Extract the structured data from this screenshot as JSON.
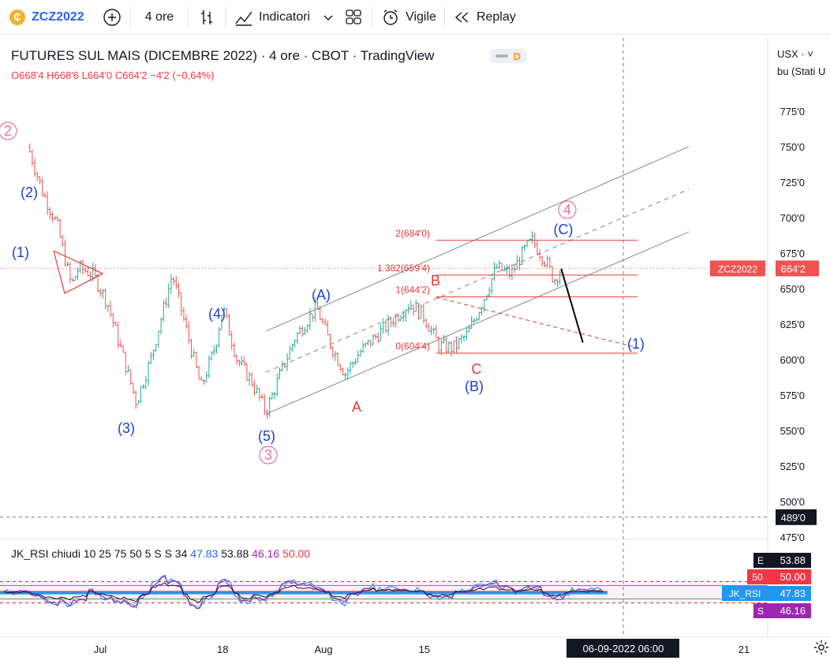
{
  "toolbar": {
    "symbol": "ZCZ2022",
    "interval": "4 ore",
    "indicators_label": "Indicatori",
    "alert_label": "Vigile",
    "replay_label": "Replay"
  },
  "header": {
    "title": "FUTURES SUL MAIS (DICEMBRE 2022)",
    "interval": "4 ore",
    "exchange": "CBOT",
    "source": "TradingView",
    "badge": "D",
    "ohlc": {
      "o": "O668'4",
      "h": "H668'6",
      "l": "L664'0",
      "c": "C664'2",
      "chg": "−4'2 (−0,64%)"
    }
  },
  "price_scale": {
    "currency": "USX",
    "unit": "bu (Stati U",
    "ticks": [
      "775'0",
      "750'0",
      "725'0",
      "700'0",
      "675'0",
      "650'0",
      "625'0",
      "600'0",
      "575'0",
      "550'0",
      "525'0",
      "500'0",
      "475'0"
    ],
    "last_symbol": "ZCZ2022",
    "last_price": "664'2",
    "crosshair_price": "489'0"
  },
  "time_axis": {
    "labels": [
      "Jul",
      "18",
      "Aug",
      "15",
      "21"
    ],
    "crosshair_label": "06-09-2022  06:00"
  },
  "rsi_panel": {
    "label_name": "JK_RSI",
    "label_params": "chiudi 10 25 75 50 5 S S 34",
    "values": [
      "47.83",
      "53.88",
      "46.16",
      "50.00"
    ],
    "value_colors": [
      "#2962ff",
      "#131722",
      "#9c27b0",
      "#f23645"
    ],
    "badges": [
      {
        "tag": "E",
        "value": "53.88",
        "color": "#131722"
      },
      {
        "tag": "50",
        "value": "50.00",
        "color": "#f23645"
      },
      {
        "tag": "JK_RSI",
        "value": "47.83",
        "color": "#2196f3"
      },
      {
        "tag": "S",
        "value": "46.16",
        "color": "#9c27b0"
      }
    ]
  },
  "annotations": {
    "elliott": [
      "2",
      "(2)",
      "(1)",
      "(3)",
      "(4)",
      "(5)",
      "3",
      "(A)",
      "A",
      "B",
      "C",
      "(B)",
      "(C)",
      "4",
      "(1)"
    ],
    "fib_levels": [
      "2(684'0)",
      "1.382(659'4)",
      "1(644'2)",
      "0(604'4)"
    ]
  },
  "colors": {
    "up": "#26a69a",
    "down": "#ef5350",
    "accent": "#2962ff",
    "wave_blue": "#1d3fcf",
    "wave_red": "#e53935",
    "wave_pink": "#e57399"
  },
  "chart_data": {
    "type": "candlestick",
    "title": "FUTURES SUL MAIS (DICEMBRE 2022)",
    "x_ticks": [
      "Jul",
      "18",
      "Aug",
      "15",
      "21"
    ],
    "ylim": [
      475,
      787
    ],
    "y_ticks": [
      775,
      750,
      725,
      700,
      675,
      650,
      625,
      600,
      575,
      550,
      525,
      500,
      475
    ],
    "last_price": 664.25,
    "close_path": [
      {
        "d": "Jun 21",
        "v": 750
      },
      {
        "d": "Jun 23",
        "v": 718
      },
      {
        "d": "Jun 25",
        "v": 695
      },
      {
        "d": "Jun 27",
        "v": 652
      },
      {
        "d": "Jun 28",
        "v": 665
      },
      {
        "d": "Jun 30",
        "v": 660
      },
      {
        "d": "Jul 02",
        "v": 640
      },
      {
        "d": "Jul 04",
        "v": 605
      },
      {
        "d": "Jul 06",
        "v": 570
      },
      {
        "d": "Jul 08",
        "v": 600
      },
      {
        "d": "Jul 10",
        "v": 640
      },
      {
        "d": "Jul 11",
        "v": 660
      },
      {
        "d": "Jul 13",
        "v": 620
      },
      {
        "d": "Jul 15",
        "v": 580
      },
      {
        "d": "Jul 17",
        "v": 610
      },
      {
        "d": "Jul 18",
        "v": 637
      },
      {
        "d": "Jul 20",
        "v": 600
      },
      {
        "d": "Jul 22",
        "v": 585
      },
      {
        "d": "Jul 24",
        "v": 563
      },
      {
        "d": "Jul 26",
        "v": 590
      },
      {
        "d": "Jul 28",
        "v": 615
      },
      {
        "d": "Jul 31",
        "v": 637
      },
      {
        "d": "Aug 02",
        "v": 610
      },
      {
        "d": "Aug 04",
        "v": 590
      },
      {
        "d": "Aug 06",
        "v": 605
      },
      {
        "d": "Aug 08",
        "v": 615
      },
      {
        "d": "Aug 10",
        "v": 625
      },
      {
        "d": "Aug 13",
        "v": 640
      },
      {
        "d": "Aug 15",
        "v": 630
      },
      {
        "d": "Aug 17",
        "v": 610
      },
      {
        "d": "Aug 19",
        "v": 608
      },
      {
        "d": "Aug 21",
        "v": 618
      },
      {
        "d": "Aug 23",
        "v": 640
      },
      {
        "d": "Aug 25",
        "v": 665
      },
      {
        "d": "Aug 27",
        "v": 660
      },
      {
        "d": "Aug 29",
        "v": 678
      },
      {
        "d": "Aug 30",
        "v": 684
      },
      {
        "d": "Sep 01",
        "v": 668
      },
      {
        "d": "Sep 02",
        "v": 656
      },
      {
        "d": "Sep 03",
        "v": 664
      }
    ],
    "projection": [
      {
        "d": "Sep 03",
        "v": 664
      },
      {
        "d": "Sep 06",
        "v": 612
      }
    ],
    "fibonacci": [
      {
        "label": "2(684'0)",
        "v": 684
      },
      {
        "label": "1.382(659'4)",
        "v": 659.5
      },
      {
        "label": "1(644'2)",
        "v": 644.25
      },
      {
        "label": "0(604'4)",
        "v": 604.5
      }
    ],
    "rsi": {
      "panel_range": [
        0,
        100
      ],
      "levels": [
        75,
        50,
        25
      ],
      "last": {
        "jk_rsi": 47.83,
        "e": 53.88,
        "s": 46.16,
        "mid": 50.0
      }
    }
  }
}
